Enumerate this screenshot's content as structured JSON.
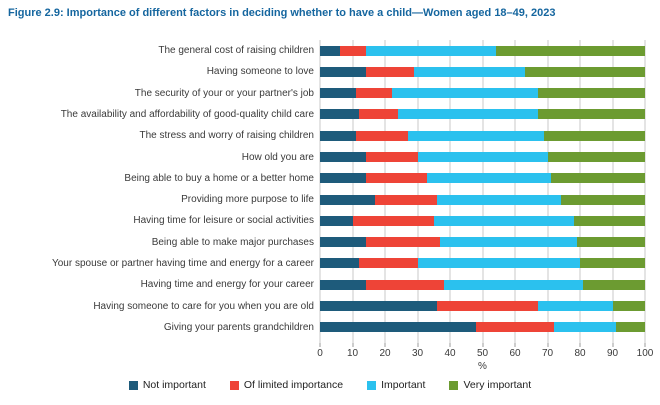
{
  "figure": {
    "title": "Figure 2.9: Importance of different factors in deciding whether to have a child—Women aged 18–49, 2023"
  },
  "colors": {
    "title_blue": "#15669F",
    "gridline": "#C9C9C9",
    "tick": "#9B9B9B",
    "axis_text": "#3A3A3A"
  },
  "chart_data": {
    "type": "bar",
    "orientation": "horizontal",
    "stacked": true,
    "grid": "vertical",
    "legend_position": "bottom",
    "xlabel": "%",
    "xlim": [
      0,
      100
    ],
    "xticks": [
      0,
      10,
      20,
      30,
      40,
      50,
      60,
      70,
      80,
      90,
      100
    ],
    "categories": [
      "The general cost of raising children",
      "Having someone to love",
      "The security of your or your partner's job",
      "The availability and affordability of good-quality child care",
      "The stress and worry of raising children",
      "How old you are",
      "Being able to buy a home or a better home",
      "Providing more purpose to life",
      "Having time for leisure or social activities",
      "Being able to make major purchases",
      "Your spouse or partner having time and energy for a career",
      "Having time and energy for your career",
      "Having someone to care for you when you are old",
      "Giving your parents grandchildren"
    ],
    "series": [
      {
        "name": "Not important",
        "color": "#1E5B7B",
        "values": [
          6,
          14,
          11,
          12,
          11,
          14,
          14,
          17,
          10,
          14,
          12,
          14,
          36,
          48
        ]
      },
      {
        "name": "Of limited importance",
        "color": "#EE4437",
        "values": [
          8,
          15,
          11,
          12,
          16,
          16,
          19,
          19,
          25,
          23,
          18,
          24,
          31,
          24
        ]
      },
      {
        "name": "Important",
        "color": "#2BC1EE",
        "values": [
          40,
          34,
          45,
          43,
          42,
          40,
          38,
          38,
          43,
          42,
          50,
          43,
          23,
          19
        ]
      },
      {
        "name": "Very important",
        "color": "#6C9B31",
        "values": [
          46,
          37,
          33,
          33,
          31,
          30,
          29,
          26,
          22,
          21,
          20,
          19,
          10,
          9
        ]
      }
    ]
  }
}
